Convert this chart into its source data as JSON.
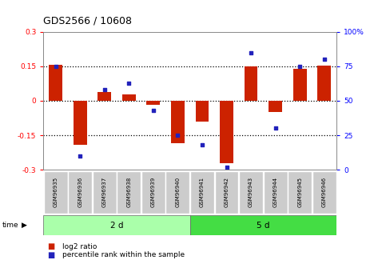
{
  "title": "GDS2566 / 10608",
  "samples": [
    "GSM96935",
    "GSM96936",
    "GSM96937",
    "GSM96938",
    "GSM96939",
    "GSM96940",
    "GSM96941",
    "GSM96942",
    "GSM96943",
    "GSM96944",
    "GSM96945",
    "GSM96946"
  ],
  "log2_ratio": [
    0.155,
    -0.19,
    0.038,
    0.028,
    -0.018,
    -0.185,
    -0.09,
    -0.27,
    0.148,
    -0.05,
    0.138,
    0.152
  ],
  "percentile_rank": [
    75,
    10,
    58,
    63,
    43,
    25,
    18,
    2,
    85,
    30,
    75,
    80
  ],
  "groups": [
    {
      "label": "2 d",
      "start": 0,
      "end": 6,
      "color": "#AAFFAA"
    },
    {
      "label": "5 d",
      "start": 6,
      "end": 12,
      "color": "#44DD44"
    }
  ],
  "ylim_left": [
    -0.3,
    0.3
  ],
  "ylim_right": [
    0,
    100
  ],
  "yticks_left": [
    -0.3,
    -0.15,
    0.0,
    0.15,
    0.3
  ],
  "ytick_labels_left": [
    "-0.3",
    "-0.15",
    "0",
    "0.15",
    "0.3"
  ],
  "yticks_right": [
    0,
    25,
    50,
    75,
    100
  ],
  "ytick_labels_right": [
    "0",
    "25",
    "50",
    "75",
    "100%"
  ],
  "hlines": [
    -0.15,
    0.0,
    0.15
  ],
  "bar_color": "#CC2200",
  "dot_color": "#2222BB",
  "bar_width": 0.55,
  "time_label": "time",
  "legend_bar": "log2 ratio",
  "legend_dot": "percentile rank within the sample",
  "group1_color": "#BBFFBB",
  "group2_color": "#44DD44",
  "sample_box_color": "#CCCCCC"
}
